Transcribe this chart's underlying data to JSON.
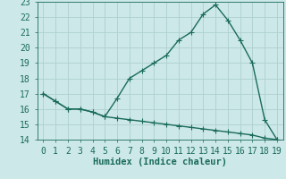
{
  "xlabel": "Humidex (Indice chaleur)",
  "line_color": "#1a6b5a",
  "bg_color": "#cce8e8",
  "grid_color": "#afd0d0",
  "x_upper": [
    0,
    1,
    2,
    3,
    4,
    5,
    6,
    7,
    8,
    9,
    10,
    11,
    12,
    13,
    14,
    15,
    16,
    17,
    18,
    19
  ],
  "y_upper": [
    17.0,
    16.5,
    16.0,
    16.0,
    15.8,
    15.5,
    16.7,
    18.0,
    18.5,
    19.0,
    19.5,
    20.5,
    21.0,
    22.2,
    22.8,
    21.8,
    20.5,
    19.0,
    15.3,
    14.0
  ],
  "x_lower": [
    0,
    1,
    2,
    3,
    4,
    5,
    6,
    7,
    8,
    9,
    10,
    11,
    12,
    13,
    14,
    15,
    16,
    17,
    18,
    19
  ],
  "y_lower": [
    17.0,
    16.5,
    16.0,
    16.0,
    15.8,
    15.5,
    15.4,
    15.3,
    15.2,
    15.1,
    15.0,
    14.9,
    14.8,
    14.7,
    14.6,
    14.5,
    14.4,
    14.3,
    14.1,
    14.0
  ],
  "xlim": [
    -0.5,
    19.5
  ],
  "ylim": [
    14,
    23
  ],
  "yticks": [
    14,
    15,
    16,
    17,
    18,
    19,
    20,
    21,
    22,
    23
  ],
  "xticks": [
    0,
    1,
    2,
    3,
    4,
    5,
    6,
    7,
    8,
    9,
    10,
    11,
    12,
    13,
    14,
    15,
    16,
    17,
    18,
    19
  ],
  "markersize": 2.0,
  "linewidth": 1.0,
  "tick_fontsize": 7,
  "label_fontsize": 7.5
}
